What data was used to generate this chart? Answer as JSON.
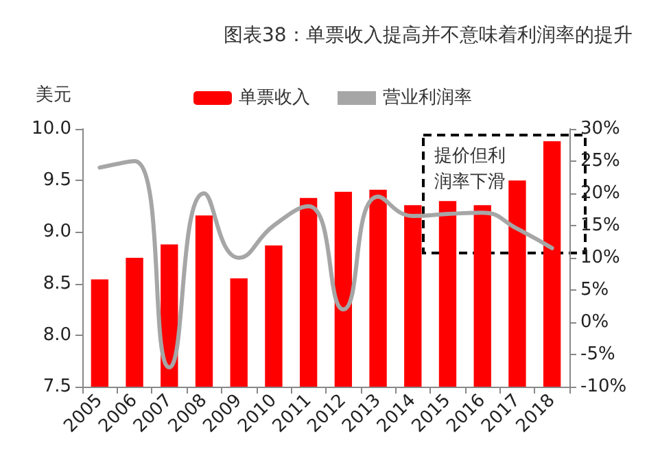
{
  "chart_data": {
    "type": "bar",
    "title": "图表38：单票收入提高并不意味着利润率的提升",
    "ylabel": "美元",
    "categories": [
      "2005",
      "2006",
      "2007",
      "2008",
      "2009",
      "2010",
      "2011",
      "2012",
      "2013",
      "2014",
      "2015",
      "2016",
      "2017",
      "2018"
    ],
    "series": [
      {
        "name": "单票收入",
        "color": "#ff0000",
        "values": [
          8.54,
          8.75,
          8.88,
          9.16,
          8.55,
          8.87,
          9.33,
          9.39,
          9.41,
          9.26,
          9.3,
          9.26,
          9.5,
          9.88
        ]
      },
      {
        "name": "营业利润率",
        "type": "line",
        "axis": "y2",
        "color": "#a6a6a6",
        "values": [
          24,
          25,
          -7,
          20,
          10,
          15,
          18,
          2,
          19.5,
          16.5,
          16.8,
          17,
          14.5,
          11.5
        ]
      }
    ],
    "ylim": [
      7.5,
      10
    ],
    "yticks": [
      {
        "value": 7.5,
        "label": "7.5"
      },
      {
        "value": 8,
        "label": "8.0"
      },
      {
        "value": 8.5,
        "label": "8.5"
      },
      {
        "value": 9,
        "label": "9.0"
      },
      {
        "value": 9.5,
        "label": "9.5"
      },
      {
        "value": 10,
        "label": "10.0"
      }
    ],
    "y2lim": [
      -10,
      30
    ],
    "y2ticks": [
      {
        "value": -10,
        "label": "-10%"
      },
      {
        "value": -5,
        "label": "-5%"
      },
      {
        "value": 0,
        "label": "0%"
      },
      {
        "value": 5,
        "label": "5%"
      },
      {
        "value": 10,
        "label": "10%"
      },
      {
        "value": 15,
        "label": "15%"
      },
      {
        "value": 20,
        "label": "20%"
      },
      {
        "value": 25,
        "label": "25%"
      },
      {
        "value": 30,
        "label": "30%"
      }
    ],
    "annotations": [
      "提价但利润率下滑"
    ],
    "legend": "top",
    "grid": false,
    "marker": "none",
    "line_style": "solid"
  }
}
